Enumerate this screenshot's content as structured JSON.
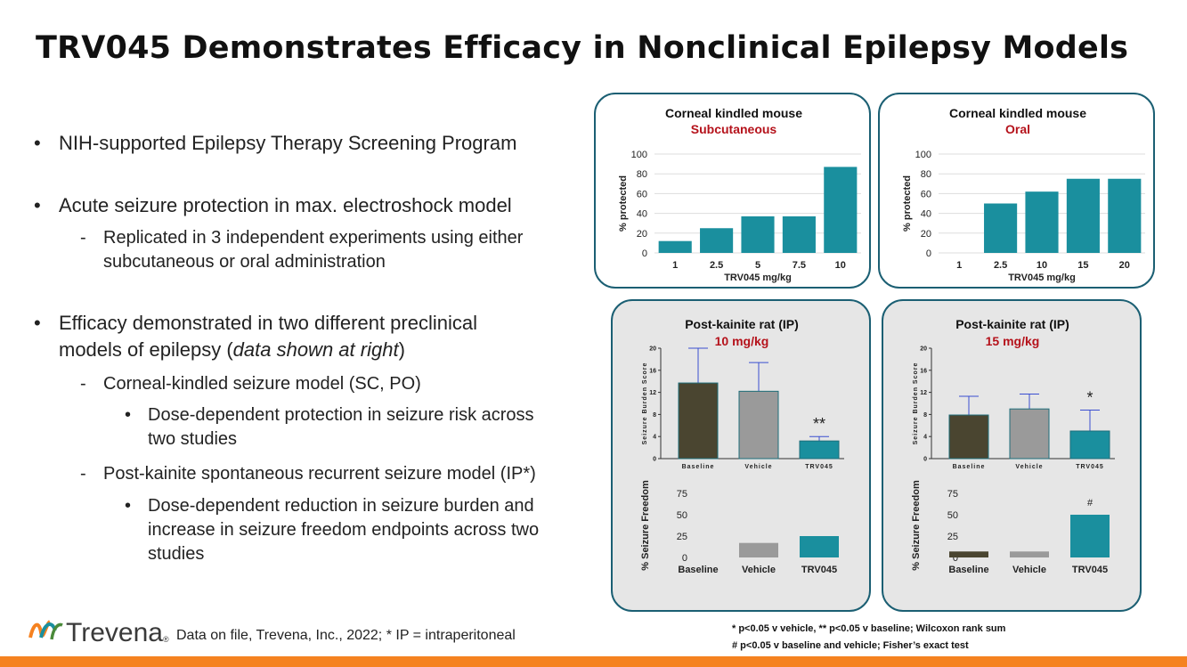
{
  "title": "TRV045 Demonstrates Efficacy in Nonclinical Epilepsy Models",
  "bullets": {
    "b1": "NIH-supported Epilepsy Therapy Screening Program",
    "b2": "Acute seizure protection in max. electroshock model",
    "b2_sub1": "Replicated in 3 independent experiments using either",
    "b2_sub2": "subcutaneous or oral administration",
    "b3_l1": "Efficacy demonstrated in two different preclinical",
    "b3_l2a": "models of epilepsy (",
    "b3_l2b": "data shown at right",
    "b3_l2c": ")",
    "s1": "Corneal-kindled seizure model (SC, PO)",
    "s1_sub1": "Dose-dependent protection in seizure risk across",
    "s1_sub2": "two studies",
    "s2": "Post-kainite spontaneous recurrent seizure model (IP*)",
    "s2_sub1": "Dose-dependent reduction in seizure burden and",
    "s2_sub2": "increase in seizure freedom endpoints across two",
    "s2_sub3": "studies",
    "dot": "•",
    "dash": "-"
  },
  "footer": {
    "brand": "Trevena",
    "reg": "®",
    "source": "Data on file, Trevena, Inc., 2022; * IP = intraperitoneal",
    "note1": "* p<0.05 v vehicle, ** p<0.05 v baseline; Wilcoxon rank sum",
    "note2": "# p<0.05 v baseline and vehicle; Fisher’s exact test"
  },
  "colors": {
    "teal": "#1a8f9e",
    "olive": "#4a4530",
    "gray": "#9a9a9a",
    "red": "#b5121b",
    "orange": "#f58220",
    "border": "#1b5f73"
  },
  "chart_data": [
    {
      "type": "bar",
      "title": "Corneal kindled mouse",
      "subtitle": "Subcutaneous",
      "categories": [
        "1",
        "2.5",
        "5",
        "7.5",
        "10"
      ],
      "values": [
        12,
        25,
        37,
        37,
        87
      ],
      "xlabel": "TRV045 mg/kg",
      "ylabel": "% protected",
      "ylim": [
        0,
        100
      ],
      "yticks": [
        "0",
        "20",
        "40",
        "60",
        "80",
        "100"
      ],
      "grid": true
    },
    {
      "type": "bar",
      "title": "Corneal kindled mouse",
      "subtitle": "Oral",
      "categories": [
        "1",
        "2.5",
        "10",
        "15",
        "20"
      ],
      "values": [
        0,
        50,
        62,
        75,
        75
      ],
      "xlabel": "TRV045 mg/kg",
      "ylabel": "% protected",
      "ylim": [
        0,
        100
      ],
      "yticks": [
        "0",
        "20",
        "40",
        "60",
        "80",
        "100"
      ],
      "grid": true
    },
    {
      "type": "bar",
      "title": "Post-kainite rat (IP)",
      "subtitle": "10 mg/kg",
      "upper": {
        "ylabel": "Seizure Burden Score",
        "categories": [
          "Baseline",
          "Vehicle",
          "TRV045"
        ],
        "values": [
          13.7,
          12.2,
          3.2
        ],
        "errors": [
          6.3,
          5.2,
          0.8
        ],
        "ylim": [
          0,
          20
        ],
        "yticks": [
          "0",
          "4",
          "8",
          "12",
          "16",
          "20"
        ],
        "annotations": [
          "",
          "",
          "**"
        ]
      },
      "lower": {
        "ylabel": "% Seizure Freedom",
        "categories": [
          "Baseline",
          "Vehicle",
          "TRV045"
        ],
        "values": [
          0,
          17,
          25
        ],
        "ylim": [
          0,
          75
        ],
        "yticks": [
          "0",
          "25",
          "50",
          "75"
        ],
        "annotations": [
          "",
          "",
          ""
        ]
      }
    },
    {
      "type": "bar",
      "title": "Post-kainite rat (IP)",
      "subtitle": "15 mg/kg",
      "upper": {
        "ylabel": "Seizure Burden Score",
        "categories": [
          "Baseline",
          "Vehicle",
          "TRV045"
        ],
        "values": [
          7.9,
          9.0,
          5.0
        ],
        "errors": [
          3.4,
          2.7,
          3.8
        ],
        "ylim": [
          0,
          20
        ],
        "yticks": [
          "0",
          "4",
          "8",
          "12",
          "16",
          "20"
        ],
        "annotations": [
          "",
          "",
          "*"
        ]
      },
      "lower": {
        "ylabel": "% Seizure Freedom",
        "categories": [
          "Baseline",
          "Vehicle",
          "TRV045"
        ],
        "values": [
          7,
          7,
          50
        ],
        "ylim": [
          0,
          75
        ],
        "yticks": [
          "0",
          "25",
          "50",
          "75"
        ],
        "annotations": [
          "",
          "",
          "#"
        ]
      }
    }
  ]
}
